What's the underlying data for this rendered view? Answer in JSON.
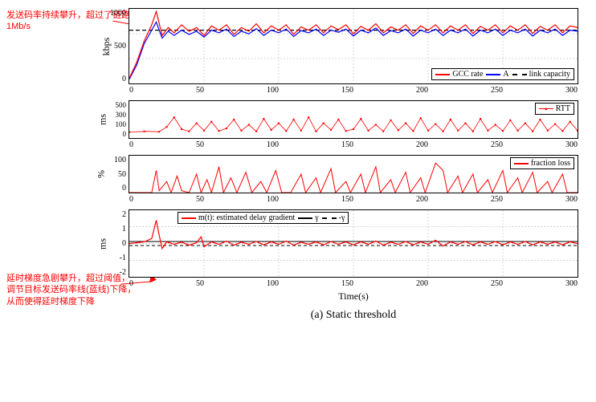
{
  "annotations": {
    "top": "发送码率持续攀升，超过了链路容量\n1Mb/s",
    "bottom": "延时梯度急剧攀升，超过阈值，\n调节目标发送码率线(蓝线)下降，\n从而使得延时梯度下降"
  },
  "caption": "(a) Static threshold",
  "x_axis_label": "Time(s)",
  "x_ticks": [
    "0",
    "50",
    "100",
    "150",
    "200",
    "250",
    "300"
  ],
  "x_range": [
    0,
    300
  ],
  "panels": {
    "kbps": {
      "ylabel": "kbps",
      "y_ticks": [
        "0",
        "500",
        "1000"
      ],
      "y_range": [
        0,
        1400
      ],
      "height": 95,
      "legend": [
        {
          "color": "#ff0000",
          "style": "solid",
          "label": "GCC rate"
        },
        {
          "color": "#0000ff",
          "style": "solid",
          "label": "A"
        },
        {
          "color": "#000000",
          "style": "dash",
          "label": "link capacity"
        }
      ],
      "link_capacity": 1000,
      "series_red": [
        [
          0,
          100
        ],
        [
          5,
          400
        ],
        [
          10,
          800
        ],
        [
          15,
          1100
        ],
        [
          18,
          1350
        ],
        [
          22,
          900
        ],
        [
          26,
          1050
        ],
        [
          30,
          950
        ],
        [
          35,
          1100
        ],
        [
          40,
          980
        ],
        [
          45,
          1050
        ],
        [
          50,
          900
        ],
        [
          55,
          1080
        ],
        [
          60,
          1000
        ],
        [
          65,
          1100
        ],
        [
          70,
          920
        ],
        [
          75,
          1050
        ],
        [
          80,
          980
        ],
        [
          85,
          1120
        ],
        [
          90,
          950
        ],
        [
          95,
          1080
        ],
        [
          100,
          1000
        ],
        [
          105,
          1100
        ],
        [
          110,
          920
        ],
        [
          115,
          1060
        ],
        [
          120,
          1000
        ],
        [
          125,
          1100
        ],
        [
          130,
          950
        ],
        [
          135,
          1080
        ],
        [
          140,
          1010
        ],
        [
          145,
          1100
        ],
        [
          150,
          930
        ],
        [
          155,
          1070
        ],
        [
          160,
          1000
        ],
        [
          165,
          1120
        ],
        [
          170,
          950
        ],
        [
          175,
          1060
        ],
        [
          180,
          1000
        ],
        [
          185,
          1100
        ],
        [
          190,
          940
        ],
        [
          195,
          1080
        ],
        [
          200,
          1000
        ],
        [
          205,
          1100
        ],
        [
          210,
          950
        ],
        [
          215,
          1080
        ],
        [
          220,
          1000
        ],
        [
          225,
          1100
        ],
        [
          230,
          940
        ],
        [
          235,
          1070
        ],
        [
          240,
          1000
        ],
        [
          245,
          1100
        ],
        [
          250,
          950
        ],
        [
          255,
          1080
        ],
        [
          260,
          1000
        ],
        [
          265,
          1100
        ],
        [
          270,
          940
        ],
        [
          275,
          1070
        ],
        [
          280,
          1000
        ],
        [
          285,
          1100
        ],
        [
          290,
          950
        ],
        [
          295,
          1080
        ],
        [
          300,
          1050
        ]
      ],
      "series_blue": [
        [
          0,
          80
        ],
        [
          5,
          350
        ],
        [
          10,
          750
        ],
        [
          15,
          1000
        ],
        [
          18,
          1150
        ],
        [
          22,
          850
        ],
        [
          26,
          980
        ],
        [
          30,
          900
        ],
        [
          35,
          1000
        ],
        [
          40,
          920
        ],
        [
          45,
          980
        ],
        [
          50,
          870
        ],
        [
          55,
          1000
        ],
        [
          60,
          950
        ],
        [
          65,
          1020
        ],
        [
          70,
          880
        ],
        [
          75,
          980
        ],
        [
          80,
          930
        ],
        [
          85,
          1030
        ],
        [
          90,
          900
        ],
        [
          95,
          1000
        ],
        [
          100,
          950
        ],
        [
          105,
          1020
        ],
        [
          110,
          880
        ],
        [
          115,
          990
        ],
        [
          120,
          950
        ],
        [
          125,
          1020
        ],
        [
          130,
          900
        ],
        [
          135,
          1000
        ],
        [
          140,
          960
        ],
        [
          145,
          1020
        ],
        [
          150,
          890
        ],
        [
          155,
          1000
        ],
        [
          160,
          950
        ],
        [
          165,
          1040
        ],
        [
          170,
          900
        ],
        [
          175,
          990
        ],
        [
          180,
          950
        ],
        [
          185,
          1020
        ],
        [
          190,
          890
        ],
        [
          195,
          1000
        ],
        [
          200,
          950
        ],
        [
          205,
          1020
        ],
        [
          210,
          900
        ],
        [
          215,
          1000
        ],
        [
          220,
          950
        ],
        [
          225,
          1020
        ],
        [
          230,
          890
        ],
        [
          235,
          1000
        ],
        [
          240,
          950
        ],
        [
          245,
          1020
        ],
        [
          250,
          900
        ],
        [
          255,
          1000
        ],
        [
          260,
          950
        ],
        [
          265,
          1020
        ],
        [
          270,
          890
        ],
        [
          275,
          1000
        ],
        [
          280,
          950
        ],
        [
          285,
          1020
        ],
        [
          290,
          900
        ],
        [
          295,
          1000
        ],
        [
          300,
          980
        ]
      ]
    },
    "rtt": {
      "ylabel": "ms",
      "y_ticks": [
        "0",
        "100",
        "300",
        "500"
      ],
      "y_range": [
        0,
        500
      ],
      "height": 48,
      "legend_label": "RTT",
      "series": [
        [
          0,
          80
        ],
        [
          10,
          90
        ],
        [
          20,
          85
        ],
        [
          25,
          150
        ],
        [
          30,
          280
        ],
        [
          35,
          120
        ],
        [
          40,
          90
        ],
        [
          45,
          200
        ],
        [
          50,
          100
        ],
        [
          55,
          220
        ],
        [
          60,
          95
        ],
        [
          65,
          130
        ],
        [
          70,
          250
        ],
        [
          75,
          100
        ],
        [
          80,
          180
        ],
        [
          85,
          90
        ],
        [
          90,
          260
        ],
        [
          95,
          110
        ],
        [
          100,
          200
        ],
        [
          105,
          95
        ],
        [
          110,
          250
        ],
        [
          115,
          100
        ],
        [
          120,
          280
        ],
        [
          125,
          90
        ],
        [
          130,
          200
        ],
        [
          135,
          110
        ],
        [
          140,
          250
        ],
        [
          145,
          95
        ],
        [
          150,
          120
        ],
        [
          155,
          260
        ],
        [
          160,
          100
        ],
        [
          165,
          180
        ],
        [
          170,
          90
        ],
        [
          175,
          240
        ],
        [
          180,
          105
        ],
        [
          185,
          200
        ],
        [
          190,
          95
        ],
        [
          195,
          270
        ],
        [
          200,
          100
        ],
        [
          205,
          190
        ],
        [
          210,
          90
        ],
        [
          215,
          250
        ],
        [
          220,
          100
        ],
        [
          225,
          200
        ],
        [
          230,
          90
        ],
        [
          235,
          260
        ],
        [
          240,
          100
        ],
        [
          245,
          180
        ],
        [
          250,
          95
        ],
        [
          255,
          240
        ],
        [
          260,
          100
        ],
        [
          265,
          200
        ],
        [
          270,
          90
        ],
        [
          275,
          250
        ],
        [
          280,
          100
        ],
        [
          285,
          190
        ],
        [
          290,
          95
        ],
        [
          295,
          220
        ],
        [
          300,
          100
        ]
      ]
    },
    "loss": {
      "ylabel": "%",
      "y_ticks": [
        "0",
        "50",
        "100"
      ],
      "y_range": [
        0,
        100
      ],
      "height": 48,
      "legend_label": "fraction loss",
      "series": [
        [
          0,
          0
        ],
        [
          15,
          0
        ],
        [
          18,
          60
        ],
        [
          20,
          5
        ],
        [
          25,
          30
        ],
        [
          28,
          0
        ],
        [
          32,
          45
        ],
        [
          35,
          5
        ],
        [
          40,
          0
        ],
        [
          45,
          50
        ],
        [
          48,
          0
        ],
        [
          52,
          35
        ],
        [
          55,
          0
        ],
        [
          60,
          70
        ],
        [
          63,
          0
        ],
        [
          68,
          40
        ],
        [
          72,
          0
        ],
        [
          78,
          55
        ],
        [
          82,
          0
        ],
        [
          88,
          30
        ],
        [
          92,
          0
        ],
        [
          98,
          60
        ],
        [
          102,
          0
        ],
        [
          108,
          0
        ],
        [
          115,
          50
        ],
        [
          118,
          0
        ],
        [
          125,
          40
        ],
        [
          128,
          0
        ],
        [
          135,
          65
        ],
        [
          138,
          0
        ],
        [
          145,
          30
        ],
        [
          148,
          0
        ],
        [
          155,
          50
        ],
        [
          158,
          0
        ],
        [
          165,
          70
        ],
        [
          168,
          0
        ],
        [
          175,
          35
        ],
        [
          178,
          0
        ],
        [
          185,
          55
        ],
        [
          188,
          0
        ],
        [
          195,
          40
        ],
        [
          198,
          0
        ],
        [
          205,
          80
        ],
        [
          210,
          60
        ],
        [
          213,
          0
        ],
        [
          220,
          45
        ],
        [
          223,
          0
        ],
        [
          230,
          50
        ],
        [
          233,
          0
        ],
        [
          240,
          35
        ],
        [
          243,
          0
        ],
        [
          250,
          60
        ],
        [
          253,
          0
        ],
        [
          260,
          40
        ],
        [
          263,
          0
        ],
        [
          270,
          55
        ],
        [
          273,
          0
        ],
        [
          280,
          30
        ],
        [
          283,
          0
        ],
        [
          290,
          50
        ],
        [
          293,
          0
        ],
        [
          300,
          0
        ]
      ]
    },
    "gradient": {
      "ylabel": "ms",
      "y_ticks": [
        "-2",
        "-1",
        "0",
        "1",
        "2"
      ],
      "y_range": [
        -2,
        2
      ],
      "height": 85,
      "legend": [
        {
          "color": "#ff0000",
          "style": "solid",
          "label": "m(t): estimated delay gradient"
        },
        {
          "color": "#000000",
          "style": "solid",
          "label": "γ"
        },
        {
          "color": "#000000",
          "style": "dash",
          "label": "-γ"
        }
      ],
      "gamma": 0.12,
      "series": [
        [
          0,
          0
        ],
        [
          5,
          0.05
        ],
        [
          10,
          0.1
        ],
        [
          15,
          0.3
        ],
        [
          18,
          1.4
        ],
        [
          20,
          0.5
        ],
        [
          22,
          -0.3
        ],
        [
          25,
          0.1
        ],
        [
          30,
          -0.05
        ],
        [
          35,
          0.08
        ],
        [
          40,
          -0.1
        ],
        [
          45,
          0.05
        ],
        [
          48,
          0.4
        ],
        [
          50,
          -0.2
        ],
        [
          55,
          0.1
        ],
        [
          60,
          -0.05
        ],
        [
          65,
          0.15
        ],
        [
          70,
          -0.1
        ],
        [
          75,
          0.08
        ],
        [
          80,
          -0.05
        ],
        [
          85,
          0.12
        ],
        [
          90,
          -0.08
        ],
        [
          95,
          0.1
        ],
        [
          100,
          -0.05
        ],
        [
          105,
          0.15
        ],
        [
          110,
          -0.1
        ],
        [
          115,
          0.08
        ],
        [
          120,
          -0.05
        ],
        [
          125,
          0.1
        ],
        [
          130,
          -0.08
        ],
        [
          135,
          0.12
        ],
        [
          140,
          -0.05
        ],
        [
          145,
          0.1
        ],
        [
          150,
          -0.08
        ],
        [
          155,
          0.1
        ],
        [
          160,
          -0.05
        ],
        [
          165,
          0.15
        ],
        [
          170,
          -0.1
        ],
        [
          175,
          0.08
        ],
        [
          180,
          -0.05
        ],
        [
          185,
          0.12
        ],
        [
          190,
          -0.08
        ],
        [
          195,
          0.1
        ],
        [
          200,
          -0.05
        ],
        [
          205,
          0.2
        ],
        [
          210,
          -0.15
        ],
        [
          215,
          0.1
        ],
        [
          220,
          -0.05
        ],
        [
          225,
          0.12
        ],
        [
          230,
          -0.08
        ],
        [
          235,
          0.1
        ],
        [
          240,
          -0.05
        ],
        [
          245,
          0.12
        ],
        [
          250,
          -0.08
        ],
        [
          255,
          0.1
        ],
        [
          260,
          -0.05
        ],
        [
          265,
          0.12
        ],
        [
          270,
          -0.08
        ],
        [
          275,
          0.1
        ],
        [
          280,
          -0.05
        ],
        [
          285,
          0.1
        ],
        [
          290,
          -0.08
        ],
        [
          295,
          0.1
        ],
        [
          300,
          0
        ]
      ]
    }
  },
  "colors": {
    "red": "#ff0000",
    "blue": "#0000ff",
    "black": "#000000"
  }
}
